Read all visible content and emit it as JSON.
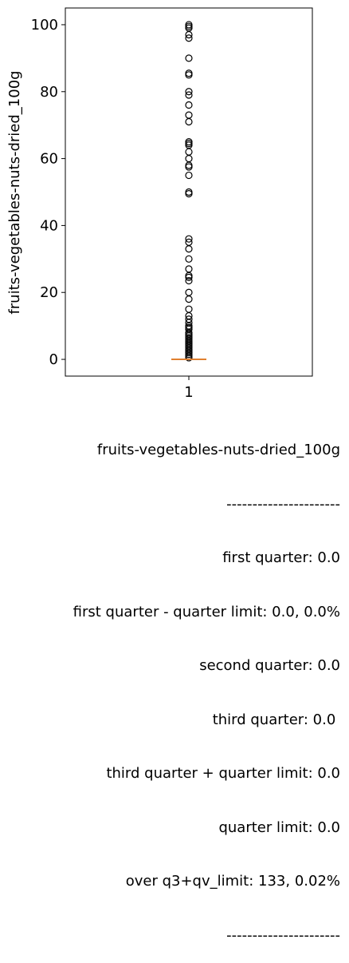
{
  "chart_data": {
    "type": "boxplot",
    "ylabel": "fruits-vegetables-nuts-dried_100g",
    "ylim": [
      -5,
      105
    ],
    "xlim": [
      0.5,
      1.5
    ],
    "yticks": [
      0,
      20,
      40,
      60,
      80,
      100
    ],
    "xticks": [
      1
    ],
    "box": {
      "q1": 0.0,
      "median": 0.0,
      "q3": 0.0,
      "whisker_low": 0.0,
      "whisker_high": 0.0
    },
    "outliers": [
      100,
      99.5,
      99,
      97,
      96,
      90,
      85.5,
      85,
      80,
      79,
      76,
      73,
      71,
      65,
      64.5,
      64,
      62,
      60,
      58,
      57.5,
      55,
      50,
      49.5,
      36,
      35,
      33,
      30,
      27,
      25,
      24.5,
      23.5,
      20,
      18,
      15,
      13,
      12,
      11,
      10,
      9.5,
      9,
      8,
      7.5,
      7,
      6.5,
      6,
      5.5,
      5,
      4.5,
      4,
      3.5,
      3,
      2.5,
      2,
      1.5,
      1,
      0.5
    ],
    "colors": {
      "median": "#e08030",
      "outlier": "#000000",
      "box": "#000000"
    }
  },
  "stats": {
    "lines": [
      "fruits-vegetables-nuts-dried_100g",
      "----------------------",
      "first quarter: 0.0",
      "first quarter - quarter limit: 0.0, 0.0%",
      "second quarter: 0.0",
      "third quarter: 0.0 ",
      "third quarter + quarter limit: 0.0",
      "quarter limit: 0.0",
      "over q3+qv_limit: 133, 0.02%",
      "----------------------"
    ]
  }
}
